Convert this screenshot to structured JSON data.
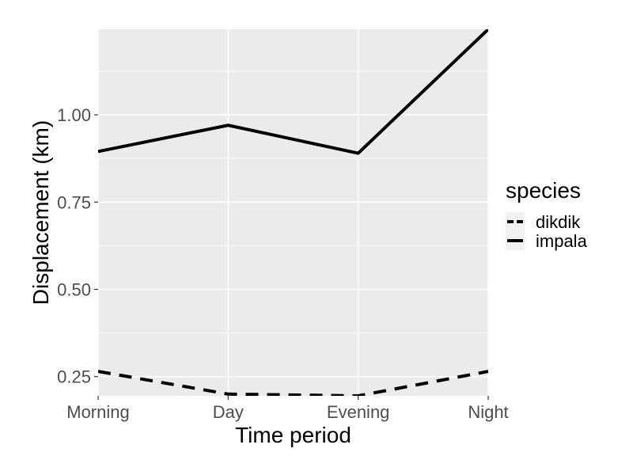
{
  "chart_data": {
    "type": "line",
    "xlabel": "Time period",
    "ylabel": "Displacement (km)",
    "categories": [
      "Morning",
      "Day",
      "Evening",
      "Night"
    ],
    "ylim": [
      0.195,
      1.245
    ],
    "yticks": [
      0.25,
      0.5,
      0.75,
      1.0
    ],
    "ytick_labels": [
      "0.25",
      "0.50",
      "0.75",
      "1.00"
    ],
    "grid": true,
    "legend": {
      "title": "species",
      "position": "right"
    },
    "series": [
      {
        "name": "dikdik",
        "values": [
          0.265,
          0.2,
          0.195,
          0.265
        ],
        "linetype": "dashed",
        "color": "#000000"
      },
      {
        "name": "impala",
        "values": [
          0.895,
          0.97,
          0.89,
          1.245
        ],
        "linetype": "solid",
        "color": "#000000"
      }
    ],
    "colors": {
      "panel_background": "#EBEBEB",
      "gridline": "#FFFFFF",
      "line": "#000000"
    }
  }
}
